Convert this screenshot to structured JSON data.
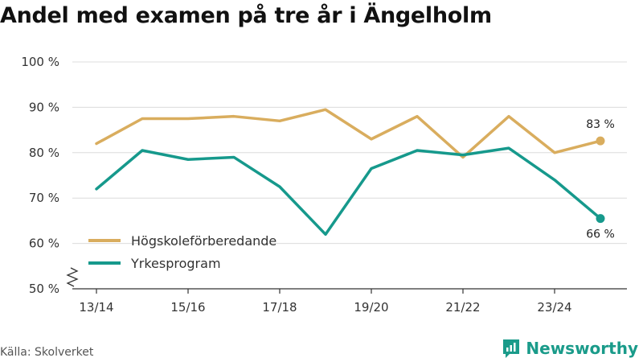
{
  "title": "Andel med examen på tre år i Ängelholm",
  "source": "Källa: Skolverket",
  "brand": "Newsworthy",
  "colors": {
    "hogskole": "#d9ad5e",
    "yrkes": "#16998c",
    "grid": "#dcdcdc",
    "axis": "#333333"
  },
  "chart_data": {
    "type": "line",
    "title": "Andel med examen på tre år i Ängelholm",
    "x": [
      "13/14",
      "14/15",
      "15/16",
      "16/17",
      "17/18",
      "18/19",
      "19/20",
      "20/21",
      "21/22",
      "22/23",
      "23/24",
      "24/25"
    ],
    "x_tick_labels": [
      "13/14",
      "15/16",
      "17/18",
      "19/20",
      "21/22",
      "23/24"
    ],
    "y_tick_labels": [
      "50 %",
      "60 %",
      "70 %",
      "80 %",
      "90 %",
      "100 %"
    ],
    "ylim": [
      50,
      100
    ],
    "y_axis_break": true,
    "grid": true,
    "legend_position": "bottom-left",
    "series": [
      {
        "name": "Högskoleförberedande",
        "values": [
          82,
          87.5,
          87.5,
          88,
          87,
          89.5,
          83,
          88,
          79,
          88,
          80,
          82.6
        ],
        "end_label": "83 %"
      },
      {
        "name": "Yrkesprogram",
        "values": [
          72,
          80.5,
          78.5,
          79,
          72.5,
          62,
          76.5,
          80.5,
          79.5,
          81,
          74,
          65.5
        ],
        "end_label": "66 %"
      }
    ]
  }
}
